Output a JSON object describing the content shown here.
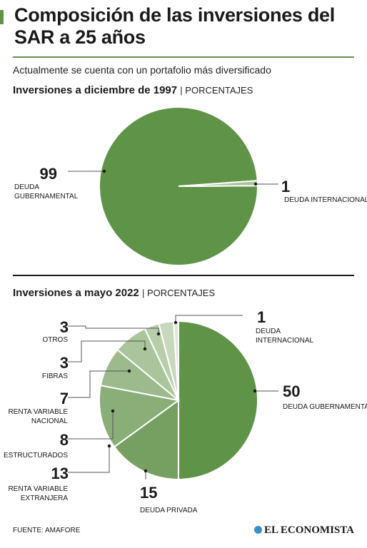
{
  "header": {
    "title": "Composición de las inversiones del SAR a 25 años",
    "subtitle": "Actualmente se cuenta con un portafolio más diversificado"
  },
  "colors": {
    "accent": "#5f9448",
    "rule": "#5f9448"
  },
  "chart_data": [
    {
      "type": "pie",
      "title": "Inversiones a diciembre de 1997",
      "unit_label": "PORCENTAJES",
      "slices": [
        {
          "value": 99,
          "label": "DEUDA GUBERNAMENTAL",
          "label_lines": [
            "DEUDA",
            "GUBERNAMENTAL"
          ],
          "color": "#5f9448"
        },
        {
          "value": 1,
          "label": "DEUDA INTERNACIONAL",
          "label_lines": [
            "DEUDA INTERNACIONAL"
          ],
          "color": "#a6c296"
        }
      ]
    },
    {
      "type": "pie",
      "title": "Inversiones a mayo 2022",
      "unit_label": "PORCENTAJES",
      "slices": [
        {
          "value": 50,
          "label": "DEUDA GUBERNAMENTAL",
          "label_lines": [
            "DEUDA GUBERNAMENTAL"
          ],
          "color": "#5f9448"
        },
        {
          "value": 15,
          "label": "DEUDA PRIVADA",
          "label_lines": [
            "DEUDA PRIVADA"
          ],
          "color": "#76a062"
        },
        {
          "value": 13,
          "label": "RENTA VARIABLE EXTRANJERA",
          "label_lines": [
            "RENTA VARIABLE",
            "EXTRANJERA"
          ],
          "color": "#8aae78"
        },
        {
          "value": 8,
          "label": "ESTRUCTURADOS",
          "label_lines": [
            "ESTRUCTURADOS"
          ],
          "color": "#9cba8c"
        },
        {
          "value": 7,
          "label": "RENTA VARIABLE NACIONAL",
          "label_lines": [
            "RENTA VARIABLE",
            "NACIONAL"
          ],
          "color": "#aac49c"
        },
        {
          "value": 3,
          "label": "FIBRAS",
          "label_lines": [
            "FIBRAS"
          ],
          "color": "#b7ceab"
        },
        {
          "value": 3,
          "label": "OTROS",
          "label_lines": [
            "OTROS"
          ],
          "color": "#c7d8bd"
        },
        {
          "value": 1,
          "label": "DEUDA INTERNACIONAL",
          "label_lines": [
            "DEUDA",
            "INTERNACIONAL"
          ],
          "color": "#dfe8d8"
        }
      ]
    }
  ],
  "footer": {
    "source": "FUENTE: AMAFORE",
    "logo_text": "EL ECONOMISTA"
  }
}
